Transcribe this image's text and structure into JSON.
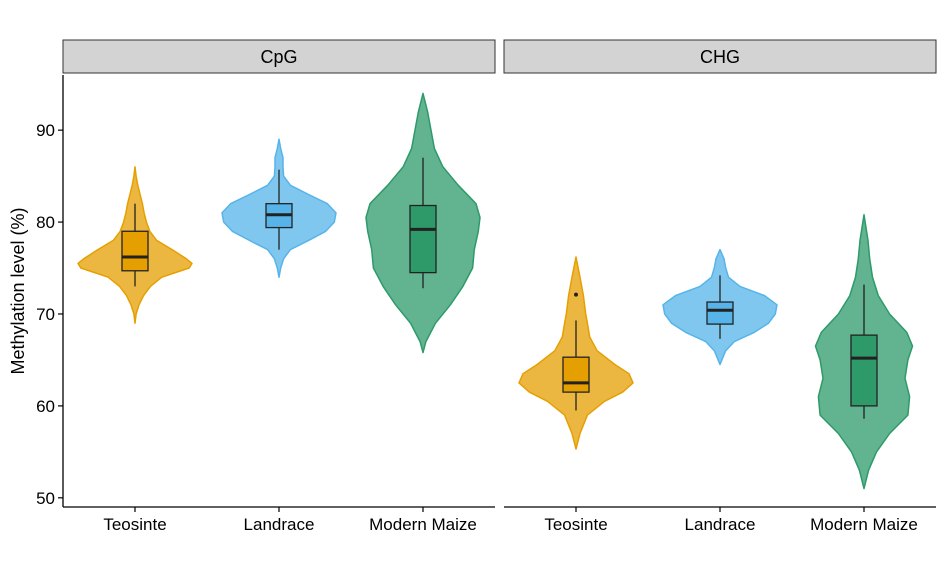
{
  "chart_data": {
    "type": "violin",
    "ylabel": "Methylation level (%)",
    "y_ticks": [
      50,
      60,
      70,
      80,
      90
    ],
    "ylim": [
      49,
      96
    ],
    "categories": [
      "Teosinte",
      "Landrace",
      "Modern Maize"
    ],
    "colors": {
      "Teosinte": "#E69F00",
      "Landrace": "#56B4E9",
      "Modern Maize": "#2E9A6A"
    },
    "grid": false,
    "legend": "none",
    "panels": [
      {
        "strip": "CpG",
        "groups": [
          {
            "name": "Teosinte",
            "boxplot": {
              "whisker_low": 73.0,
              "q1": 74.7,
              "median": 76.2,
              "q3": 79.0,
              "whisker_high": 82.0
            },
            "outliers": [],
            "density": [
              [
                69.0,
                0.0
              ],
              [
                70.0,
                0.02
              ],
              [
                71.0,
                0.07
              ],
              [
                72.0,
                0.15
              ],
              [
                73.0,
                0.27
              ],
              [
                74.0,
                0.47
              ],
              [
                75.0,
                0.95
              ],
              [
                75.5,
                1.0
              ],
              [
                76.0,
                0.9
              ],
              [
                77.0,
                0.65
              ],
              [
                78.0,
                0.38
              ],
              [
                79.0,
                0.26
              ],
              [
                80.0,
                0.2
              ],
              [
                81.0,
                0.16
              ],
              [
                82.0,
                0.13
              ],
              [
                83.0,
                0.09
              ],
              [
                84.0,
                0.05
              ],
              [
                85.0,
                0.02
              ],
              [
                86.0,
                0.0
              ]
            ]
          },
          {
            "name": "Landrace",
            "boxplot": {
              "whisker_low": 77.0,
              "q1": 79.4,
              "median": 80.8,
              "q3": 82.0,
              "whisker_high": 85.7
            },
            "outliers": [],
            "density": [
              [
                74.0,
                0.0
              ],
              [
                75.0,
                0.03
              ],
              [
                76.0,
                0.08
              ],
              [
                77.0,
                0.2
              ],
              [
                78.0,
                0.52
              ],
              [
                79.0,
                0.82
              ],
              [
                80.0,
                0.97
              ],
              [
                81.0,
                1.0
              ],
              [
                82.0,
                0.85
              ],
              [
                83.0,
                0.52
              ],
              [
                84.0,
                0.2
              ],
              [
                85.0,
                0.08
              ],
              [
                86.0,
                0.07
              ],
              [
                87.0,
                0.07
              ],
              [
                88.0,
                0.03
              ],
              [
                89.0,
                0.0
              ]
            ]
          },
          {
            "name": "Modern Maize",
            "boxplot": {
              "whisker_low": 72.8,
              "q1": 74.5,
              "median": 79.2,
              "q3": 81.8,
              "whisker_high": 87.0
            },
            "outliers": [],
            "density": [
              [
                65.8,
                0.0
              ],
              [
                67.0,
                0.05
              ],
              [
                69.0,
                0.22
              ],
              [
                71.0,
                0.48
              ],
              [
                73.0,
                0.7
              ],
              [
                75.0,
                0.87
              ],
              [
                77.0,
                0.9
              ],
              [
                79.0,
                0.97
              ],
              [
                80.5,
                1.0
              ],
              [
                82.0,
                0.93
              ],
              [
                84.0,
                0.62
              ],
              [
                86.0,
                0.35
              ],
              [
                88.0,
                0.2
              ],
              [
                90.0,
                0.14
              ],
              [
                92.0,
                0.08
              ],
              [
                94.0,
                0.0
              ]
            ]
          }
        ]
      },
      {
        "strip": "CHG",
        "groups": [
          {
            "name": "Teosinte",
            "boxplot": {
              "whisker_low": 59.5,
              "q1": 61.5,
              "median": 62.5,
              "q3": 65.3,
              "whisker_high": 69.3
            },
            "outliers": [
              72.1
            ],
            "density": [
              [
                55.3,
                0.0
              ],
              [
                57.0,
                0.07
              ],
              [
                59.0,
                0.2
              ],
              [
                60.5,
                0.5
              ],
              [
                61.5,
                0.82
              ],
              [
                62.5,
                1.0
              ],
              [
                63.5,
                0.93
              ],
              [
                64.5,
                0.68
              ],
              [
                66.0,
                0.37
              ],
              [
                67.5,
                0.24
              ],
              [
                69.0,
                0.2
              ],
              [
                70.0,
                0.17
              ],
              [
                72.0,
                0.13
              ],
              [
                74.0,
                0.07
              ],
              [
                76.2,
                0.0
              ]
            ]
          },
          {
            "name": "Landrace",
            "boxplot": {
              "whisker_low": 67.3,
              "q1": 68.9,
              "median": 70.4,
              "q3": 71.3,
              "whisker_high": 74.2
            },
            "outliers": [],
            "density": [
              [
                64.5,
                0.0
              ],
              [
                66.0,
                0.1
              ],
              [
                67.0,
                0.25
              ],
              [
                68.0,
                0.6
              ],
              [
                69.0,
                0.85
              ],
              [
                70.0,
                0.97
              ],
              [
                71.0,
                1.0
              ],
              [
                72.0,
                0.78
              ],
              [
                73.0,
                0.35
              ],
              [
                74.0,
                0.15
              ],
              [
                75.0,
                0.1
              ],
              [
                76.0,
                0.07
              ],
              [
                77.0,
                0.0
              ]
            ]
          },
          {
            "name": "Modern Maize",
            "boxplot": {
              "whisker_low": 58.6,
              "q1": 60.0,
              "median": 65.2,
              "q3": 67.7,
              "whisker_high": 73.2
            },
            "outliers": [],
            "density": [
              [
                51.0,
                0.0
              ],
              [
                53.0,
                0.08
              ],
              [
                55.0,
                0.22
              ],
              [
                57.0,
                0.45
              ],
              [
                59.0,
                0.77
              ],
              [
                61.0,
                0.8
              ],
              [
                63.0,
                0.72
              ],
              [
                65.0,
                0.77
              ],
              [
                66.5,
                0.85
              ],
              [
                68.0,
                0.75
              ],
              [
                70.0,
                0.45
              ],
              [
                72.0,
                0.25
              ],
              [
                74.0,
                0.15
              ],
              [
                76.0,
                0.1
              ],
              [
                78.0,
                0.07
              ],
              [
                80.8,
                0.0
              ]
            ]
          }
        ]
      }
    ]
  }
}
